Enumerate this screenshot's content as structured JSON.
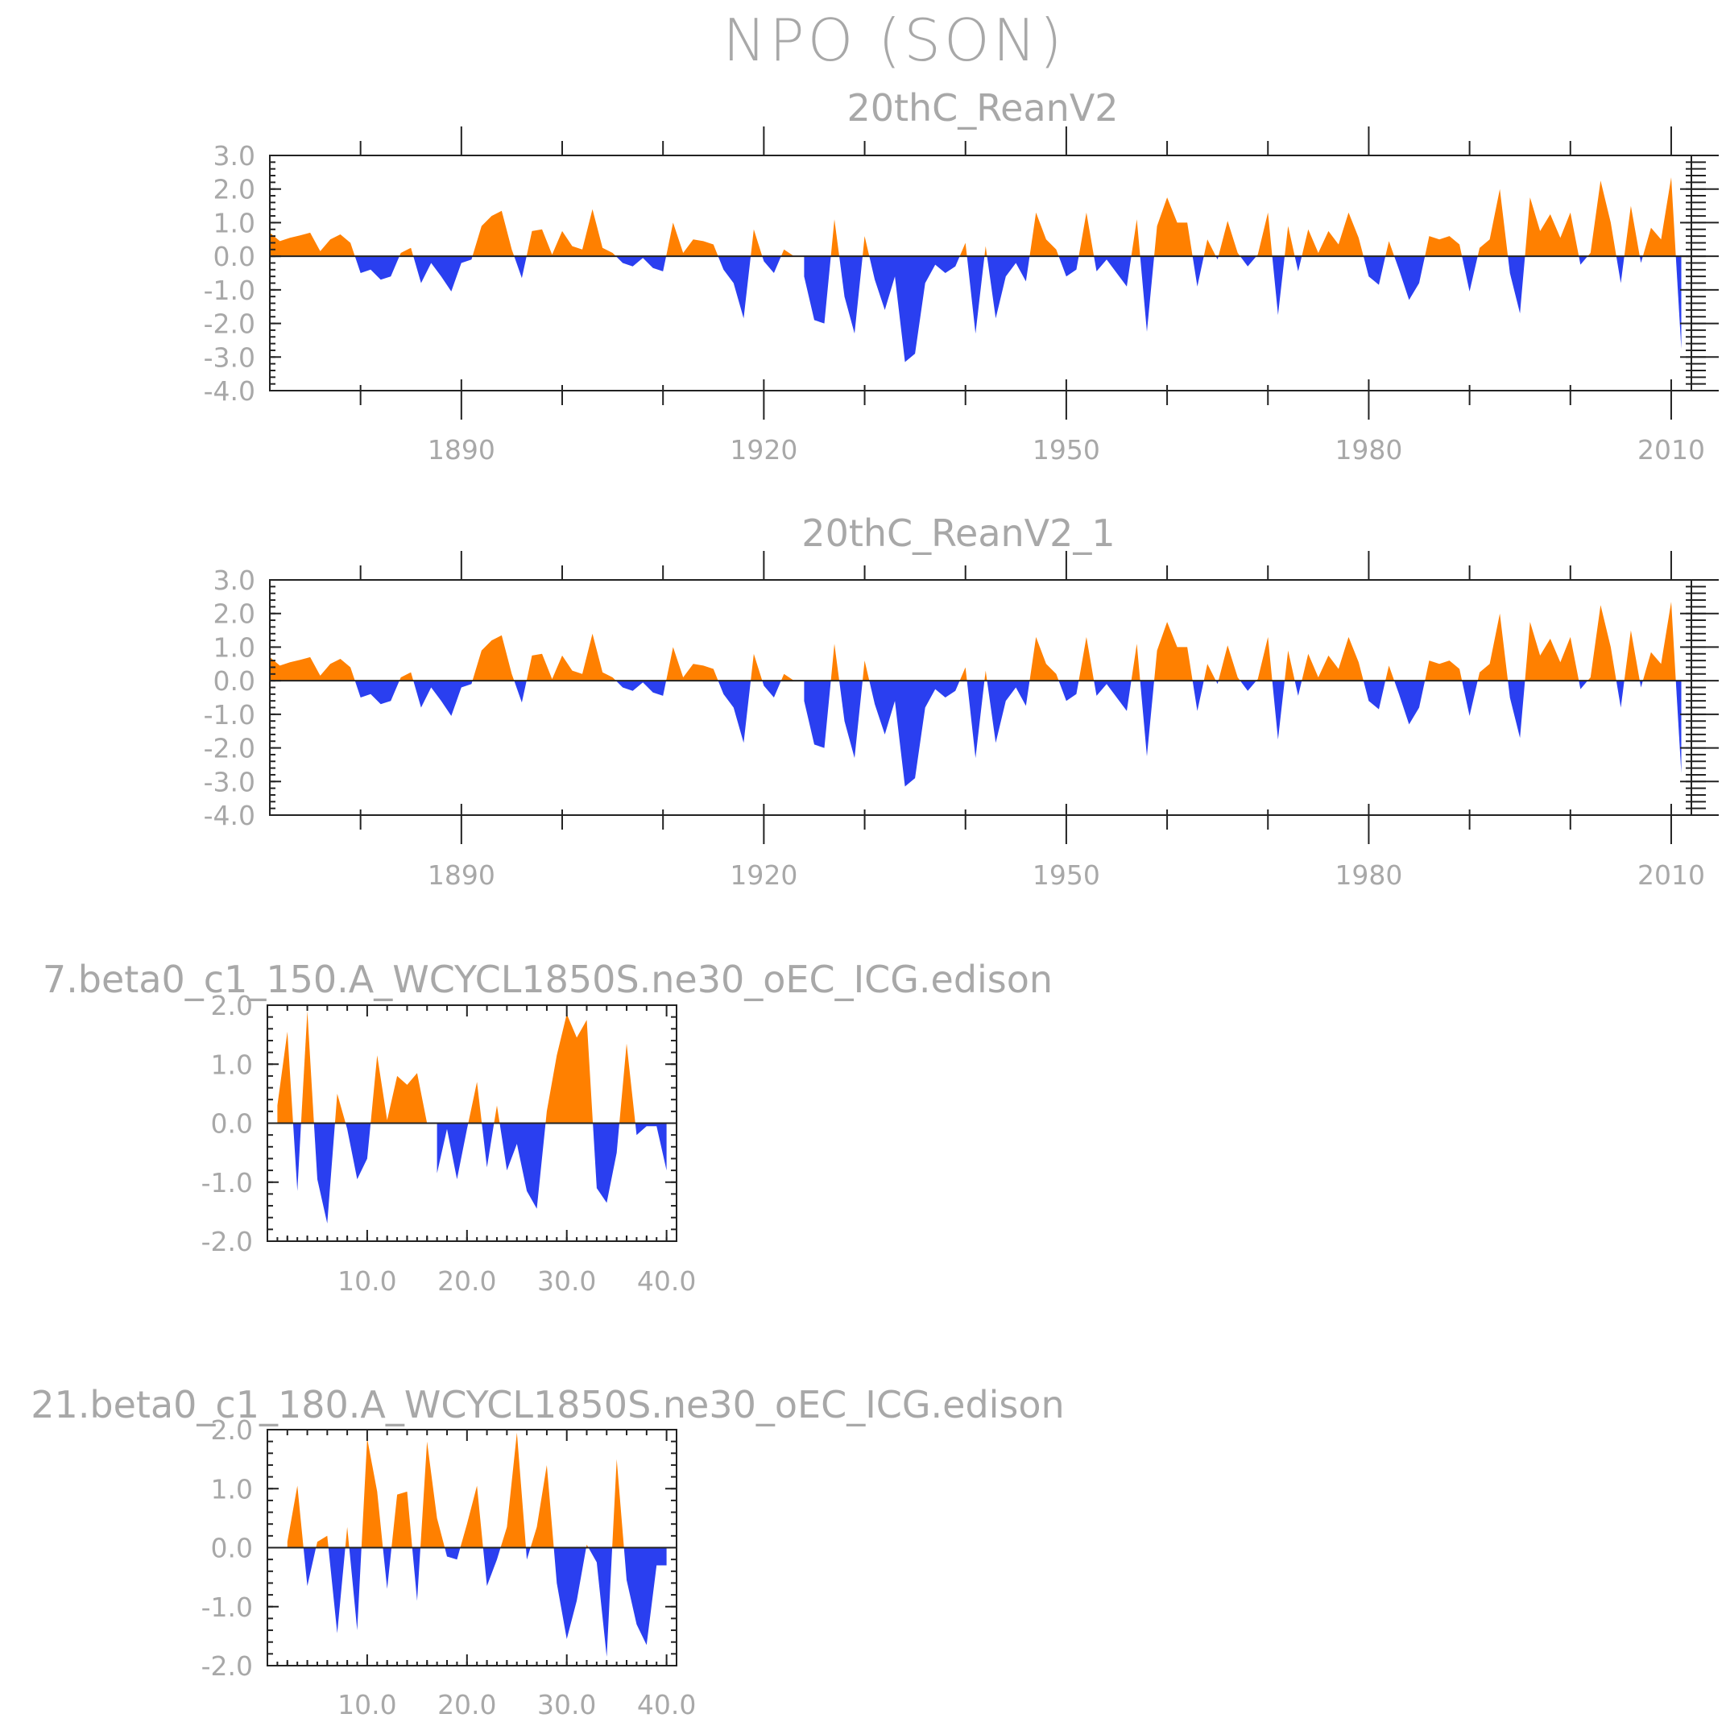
{
  "figure_title": "NPO (SON)",
  "colors": {
    "positive": "#ff8000",
    "negative": "#2a3ff0",
    "text": "#a8a8a8",
    "axes": "#222222"
  },
  "chart_data": [
    {
      "type": "area",
      "title": "20thC_ReanV2",
      "xlim": [
        1871,
        2012
      ],
      "ylim": [
        -4.0,
        3.0
      ],
      "x_ticks": [
        1890,
        1920,
        1950,
        1980,
        2010
      ],
      "x_tick_labels": [
        "1890",
        "1920",
        "1950",
        "1980",
        "2010"
      ],
      "y_ticks": [
        -4.0,
        -3.0,
        -2.0,
        -1.0,
        0.0,
        1.0,
        2.0,
        3.0
      ],
      "y_tick_labels": [
        "-4.0",
        "-3.0",
        "-2.0",
        "-1.0",
        "0.0",
        "1.0",
        "2.0",
        "3.0"
      ],
      "x_start": 1871,
      "values": [
        0.7,
        0.45,
        0.55,
        0.62,
        0.7,
        0.15,
        0.5,
        0.65,
        0.4,
        -0.5,
        -0.4,
        -0.7,
        -0.6,
        0.1,
        0.25,
        -0.8,
        -0.2,
        -0.6,
        -1.05,
        -0.2,
        -0.1,
        0.9,
        1.2,
        1.35,
        0.2,
        -0.65,
        0.75,
        0.8,
        0.05,
        0.75,
        0.3,
        0.2,
        1.4,
        0.25,
        0.1,
        -0.2,
        -0.3,
        -0.05,
        -0.35,
        -0.45,
        1.0,
        0.1,
        0.5,
        0.45,
        0.35,
        -0.4,
        -0.8,
        -1.85,
        0.8,
        -0.15,
        -0.5,
        0.2,
        0.0,
        -0.6,
        -1.9,
        -2.0,
        1.1,
        -1.2,
        -2.3,
        0.6,
        -0.7,
        -1.6,
        -0.6,
        -3.15,
        -2.9,
        -0.8,
        -0.25,
        -0.5,
        -0.3,
        0.4,
        -2.3,
        0.3,
        -1.85,
        -0.6,
        -0.2,
        -0.75,
        1.3,
        0.5,
        0.2,
        -0.6,
        -0.4,
        1.3,
        -0.45,
        -0.1,
        -0.5,
        -0.9,
        1.1,
        -2.25,
        0.9,
        1.75,
        1.0,
        1.0,
        -0.9,
        0.5,
        -0.1,
        1.05,
        0.1,
        -0.3,
        0.05,
        1.3,
        -1.75,
        0.9,
        -0.45,
        0.8,
        0.1,
        0.75,
        0.35,
        1.3,
        0.55,
        -0.6,
        -0.85,
        0.45,
        -0.4,
        -1.3,
        -0.8,
        0.6,
        0.5,
        0.6,
        0.35,
        -1.05,
        0.25,
        0.5,
        2.0,
        -0.5,
        -1.7,
        1.75,
        0.75,
        1.25,
        0.55,
        1.3,
        -0.25,
        0.1,
        2.25,
        1.0,
        -0.8,
        1.5,
        -0.2,
        0.85,
        0.5,
        2.35,
        -2.75
      ]
    },
    {
      "type": "area",
      "title": "20thC_ReanV2_1",
      "xlim": [
        1871,
        2012
      ],
      "ylim": [
        -4.0,
        3.0
      ],
      "x_ticks": [
        1890,
        1920,
        1950,
        1980,
        2010
      ],
      "x_tick_labels": [
        "1890",
        "1920",
        "1950",
        "1980",
        "2010"
      ],
      "y_ticks": [
        -4.0,
        -3.0,
        -2.0,
        -1.0,
        0.0,
        1.0,
        2.0,
        3.0
      ],
      "y_tick_labels": [
        "-4.0",
        "-3.0",
        "-2.0",
        "-1.0",
        "0.0",
        "1.0",
        "2.0",
        "3.0"
      ],
      "x_start": 1871,
      "values": [
        0.7,
        0.45,
        0.55,
        0.62,
        0.7,
        0.15,
        0.5,
        0.65,
        0.4,
        -0.5,
        -0.4,
        -0.7,
        -0.6,
        0.1,
        0.25,
        -0.8,
        -0.2,
        -0.6,
        -1.05,
        -0.2,
        -0.1,
        0.9,
        1.2,
        1.35,
        0.2,
        -0.65,
        0.75,
        0.8,
        0.05,
        0.75,
        0.3,
        0.2,
        1.4,
        0.25,
        0.1,
        -0.2,
        -0.3,
        -0.05,
        -0.35,
        -0.45,
        1.0,
        0.1,
        0.5,
        0.45,
        0.35,
        -0.4,
        -0.8,
        -1.85,
        0.8,
        -0.15,
        -0.5,
        0.2,
        0.0,
        -0.6,
        -1.9,
        -2.0,
        1.1,
        -1.2,
        -2.3,
        0.6,
        -0.7,
        -1.6,
        -0.6,
        -3.15,
        -2.9,
        -0.8,
        -0.25,
        -0.5,
        -0.3,
        0.4,
        -2.3,
        0.3,
        -1.85,
        -0.6,
        -0.2,
        -0.75,
        1.3,
        0.5,
        0.2,
        -0.6,
        -0.4,
        1.3,
        -0.45,
        -0.1,
        -0.5,
        -0.9,
        1.1,
        -2.25,
        0.9,
        1.75,
        1.0,
        1.0,
        -0.9,
        0.5,
        -0.1,
        1.05,
        0.1,
        -0.3,
        0.05,
        1.3,
        -1.75,
        0.9,
        -0.45,
        0.8,
        0.1,
        0.75,
        0.35,
        1.3,
        0.55,
        -0.6,
        -0.85,
        0.45,
        -0.4,
        -1.3,
        -0.8,
        0.6,
        0.5,
        0.6,
        0.35,
        -1.05,
        0.25,
        0.5,
        2.0,
        -0.5,
        -1.7,
        1.75,
        0.75,
        1.25,
        0.55,
        1.3,
        -0.25,
        0.1,
        2.25,
        1.0,
        -0.8,
        1.5,
        -0.2,
        0.85,
        0.5,
        2.35,
        -2.75
      ]
    },
    {
      "type": "area",
      "title": "7.beta0_c1_150.A_WCYCL1850S.ne30_oEC_ICG.edison",
      "xlim": [
        0,
        41
      ],
      "ylim": [
        -2.0,
        2.0
      ],
      "x_ticks": [
        10.0,
        20.0,
        30.0,
        40.0
      ],
      "x_tick_labels": [
        "10.0",
        "20.0",
        "30.0",
        "40.0"
      ],
      "y_ticks": [
        -2.0,
        -1.0,
        0.0,
        1.0,
        2.0
      ],
      "y_tick_labels": [
        "-2.0",
        "-1.0",
        "0.0",
        "1.0",
        "2.0"
      ],
      "x_start": 1,
      "values": [
        0.3,
        1.55,
        -1.15,
        1.9,
        -0.95,
        -1.7,
        0.5,
        -0.1,
        -0.95,
        -0.6,
        1.15,
        0.05,
        0.8,
        0.65,
        0.85,
        0.0,
        -0.85,
        -0.1,
        -0.95,
        -0.1,
        0.7,
        -0.75,
        0.3,
        -0.8,
        -0.35,
        -1.15,
        -1.45,
        0.2,
        1.15,
        1.85,
        1.45,
        1.75,
        -1.1,
        -1.35,
        -0.5,
        1.35,
        -0.2,
        -0.05,
        -0.05,
        -0.8
      ]
    },
    {
      "type": "area",
      "title": "21.beta0_c1_180.A_WCYCL1850S.ne30_oEC_ICG.edison",
      "xlim": [
        0,
        41
      ],
      "ylim": [
        -2.0,
        2.0
      ],
      "x_ticks": [
        10.0,
        20.0,
        30.0,
        40.0
      ],
      "x_tick_labels": [
        "10.0",
        "20.0",
        "30.0",
        "40.0"
      ],
      "y_ticks": [
        -2.0,
        -1.0,
        0.0,
        1.0,
        2.0
      ],
      "y_tick_labels": [
        "-2.0",
        "-1.0",
        "0.0",
        "1.0",
        "2.0"
      ],
      "x_start": 1,
      "values": [
        0.0,
        0.1,
        1.05,
        -0.65,
        0.1,
        0.2,
        -1.45,
        0.35,
        -1.4,
        1.85,
        0.95,
        -0.7,
        0.9,
        0.95,
        -0.9,
        1.8,
        0.5,
        -0.15,
        -0.2,
        0.4,
        1.05,
        -0.65,
        -0.2,
        0.35,
        1.95,
        -0.2,
        0.35,
        1.4,
        -0.6,
        -1.55,
        -0.9,
        0.05,
        -0.25,
        -1.85,
        1.5,
        -0.55,
        -1.3,
        -1.65,
        -0.3,
        -0.3
      ]
    }
  ]
}
